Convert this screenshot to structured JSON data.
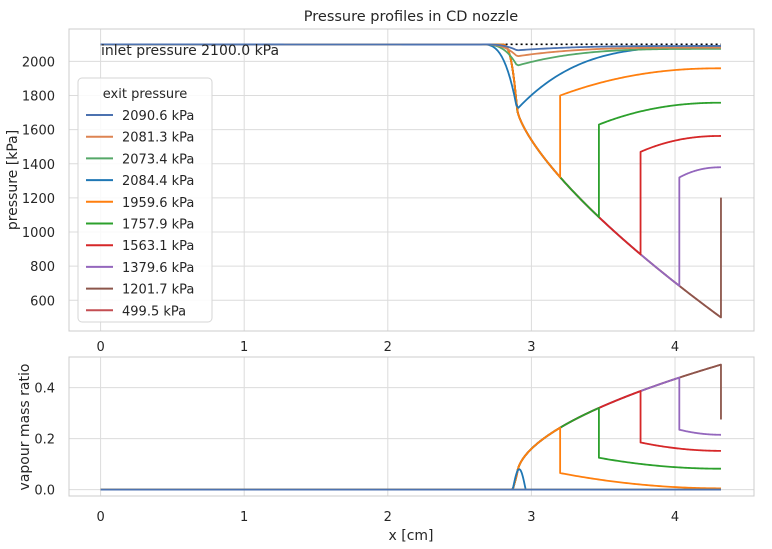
{
  "chart_data": [
    {
      "type": "line",
      "title": "Pressure profiles in CD nozzle",
      "xlabel": "",
      "ylabel": "pressure [kPa]",
      "xlim": [
        -0.22,
        4.55
      ],
      "ylim": [
        420,
        2190
      ],
      "xticks": [
        0,
        1,
        2,
        3,
        4
      ],
      "yticks": [
        600,
        800,
        1000,
        1200,
        1400,
        1600,
        1800,
        2000
      ],
      "grid": true,
      "annotation": "inlet pressure 2100.0 kPa",
      "inlet_pressure": 2100.0,
      "legend": {
        "title": "exit pressure",
        "placement": "left"
      },
      "series": [
        {
          "name": "2090.6 kPa",
          "color": "#4c72b0",
          "exit_p": 2090.6,
          "kind": "subsonic",
          "throat_min": 2065
        },
        {
          "name": "2081.3 kPa",
          "color": "#dd8452",
          "exit_p": 2081.3,
          "kind": "subsonic",
          "throat_min": 2030
        },
        {
          "name": "2073.4 kPa",
          "color": "#55a868",
          "exit_p": 2073.4,
          "kind": "subsonic",
          "throat_min": 1975
        },
        {
          "name": "2084.4 kPa",
          "color": "#1f77b4",
          "exit_p": 2084.4,
          "kind": "subsonic",
          "throat_min": 1720
        },
        {
          "name": "1959.6 kPa",
          "color": "#ff7f0e",
          "exit_p": 1959.6,
          "kind": "shock",
          "shock_x": 3.2,
          "post_shock": 1800
        },
        {
          "name": "1757.9 kPa",
          "color": "#2ca02c",
          "exit_p": 1757.9,
          "kind": "shock",
          "shock_x": 3.47,
          "post_shock": 1630
        },
        {
          "name": "1563.1 kPa",
          "color": "#d62728",
          "exit_p": 1563.1,
          "kind": "shock",
          "shock_x": 3.76,
          "post_shock": 1470
        },
        {
          "name": "1379.6 kPa",
          "color": "#9467bd",
          "exit_p": 1379.6,
          "kind": "shock",
          "shock_x": 4.03,
          "post_shock": 1320
        },
        {
          "name": "1201.7 kPa",
          "color": "#8c564b",
          "exit_p": 1201.7,
          "kind": "shock",
          "shock_x": 4.32,
          "post_shock": 1201.7
        },
        {
          "name": "499.5 kPa",
          "color": "#c44e52",
          "exit_p": 499.5,
          "kind": "supersonic"
        }
      ]
    },
    {
      "type": "line",
      "title": "",
      "xlabel": "x [cm]",
      "ylabel": "vapour mass ratio",
      "xlim": [
        -0.22,
        4.55
      ],
      "ylim": [
        -0.025,
        0.52
      ],
      "xticks": [
        0,
        1,
        2,
        3,
        4
      ],
      "yticks": [
        0.0,
        0.2,
        0.4
      ],
      "grid": true,
      "series": [
        {
          "color": "#4c72b0",
          "kind": "zero"
        },
        {
          "color": "#dd8452",
          "kind": "zero"
        },
        {
          "color": "#55a868",
          "kind": "zero"
        },
        {
          "color": "#1f77b4",
          "kind": "bump",
          "peak": 0.08
        },
        {
          "color": "#ff7f0e",
          "kind": "shock",
          "shock_x": 3.2,
          "post": 0.065,
          "end": 0.005
        },
        {
          "color": "#2ca02c",
          "kind": "shock",
          "shock_x": 3.47,
          "post": 0.125,
          "end": 0.082
        },
        {
          "color": "#d62728",
          "kind": "shock",
          "shock_x": 3.76,
          "post": 0.185,
          "end": 0.152
        },
        {
          "color": "#9467bd",
          "kind": "shock",
          "shock_x": 4.03,
          "post": 0.235,
          "end": 0.215
        },
        {
          "color": "#8c564b",
          "kind": "shock",
          "shock_x": 4.32,
          "post": 0.275,
          "end": 0.275
        },
        {
          "color": "#c44e52",
          "kind": "supersonic",
          "end": 0.49
        }
      ]
    }
  ],
  "model": {
    "throat_x": 2.9,
    "exit_x": 4.32,
    "supersonic_exit_p": 499.5,
    "throat_p_critical": 1720,
    "vapour_max": 0.49
  }
}
